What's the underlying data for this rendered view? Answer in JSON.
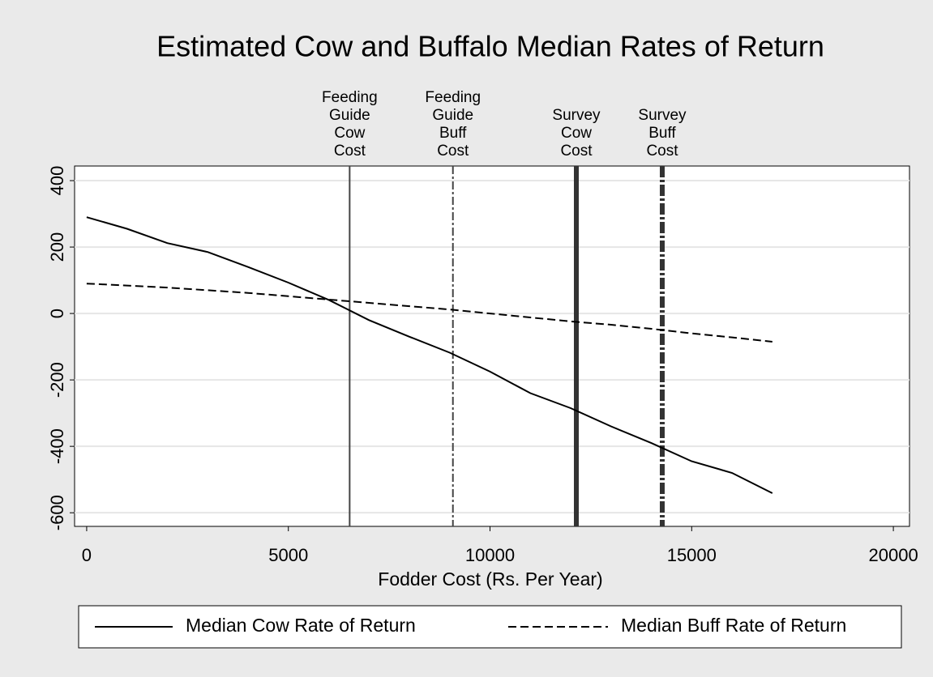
{
  "chart_data": {
    "type": "line",
    "title": "Estimated Cow and Buffalo Median Rates of Return",
    "x_label": "Fodder Cost (Rs. Per Year)",
    "x": [
      0,
      1000,
      2000,
      3000,
      4000,
      5000,
      6000,
      7000,
      8000,
      9000,
      10000,
      11000,
      12000,
      13000,
      14000,
      15000,
      16000,
      17000
    ],
    "series": [
      {
        "name": "Median Cow Rate of Return",
        "color": "#000000",
        "dash": "solid",
        "values": [
          290,
          255,
          212,
          185,
          140,
          93,
          41,
          -20,
          -70,
          -118,
          -175,
          -240,
          -285,
          -340,
          -390,
          -445,
          -480,
          -541
        ]
      },
      {
        "name": "Median Buff Rate of Return",
        "color": "#000000",
        "dash": "dashed",
        "values": [
          90,
          84,
          78,
          70,
          62,
          52,
          42,
          32,
          22,
          12,
          0,
          -12,
          -24,
          -34,
          -46,
          -60,
          -72,
          -85
        ]
      }
    ],
    "reference_lines": [
      {
        "x": 6520,
        "label": [
          "Feeding",
          "Guide",
          "Cow",
          "Cost"
        ],
        "dash": "solid",
        "width": "thin"
      },
      {
        "x": 9080,
        "label": [
          "Feeding",
          "Guide",
          "Buff",
          "Cost"
        ],
        "dash": "dashed",
        "width": "thin"
      },
      {
        "x": 12140,
        "label": [
          "Survey",
          "Cow",
          "Cost"
        ],
        "dash": "solid",
        "width": "thick"
      },
      {
        "x": 14270,
        "label": [
          "Survey",
          "Buff",
          "Cost"
        ],
        "dash": "dashed",
        "width": "thick"
      }
    ],
    "xlim": [
      -300,
      20400
    ],
    "xticks": [
      0,
      5000,
      10000,
      15000,
      20000
    ],
    "ylim": [
      -641,
      444
    ],
    "yticks": [
      -600,
      -400,
      -200,
      0,
      200,
      400
    ],
    "grid": true,
    "legend": "bottom"
  }
}
